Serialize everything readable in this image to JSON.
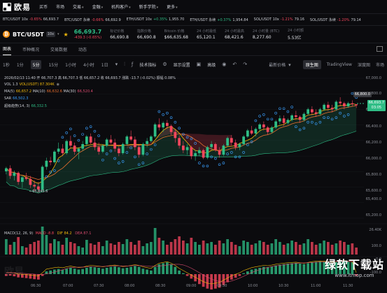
{
  "nav": {
    "logo_text": "欧易",
    "items": [
      "买币",
      "市场",
      "交易",
      "金融",
      "机构客户",
      "新手学院",
      "更多"
    ]
  },
  "ticker": [
    {
      "pair": "BTC/USDT 10x",
      "change": "-0.65%",
      "price": "66,693.7",
      "dir": "down"
    },
    {
      "pair": "BTC/USDT 永续",
      "change": "-0.66%",
      "price": "66,692.9",
      "dir": "down"
    },
    {
      "pair": "ETH/USDT 10x",
      "change": "+0.35%",
      "price": "1,955.70",
      "dir": "up"
    },
    {
      "pair": "ETH/USDT 永续",
      "change": "+0.37%",
      "price": "1,954.84",
      "dir": "up"
    },
    {
      "pair": "SOL/USDT 10x",
      "change": "-1.21%",
      "price": "79.16",
      "dir": "down"
    },
    {
      "pair": "SOL/USDT 永续",
      "change": "-1.20%",
      "price": "79.14",
      "dir": "down"
    }
  ],
  "info": {
    "coin_icon": "₿",
    "pair": "BTC/USDT",
    "leverage": "10x",
    "price": "66,693.7",
    "change": "-439.3 (-0.65%)",
    "stats": [
      {
        "label": "标记价格",
        "value": "66,690.8"
      },
      {
        "label": "指数价格",
        "value": "66,690.8"
      },
      {
        "label": "Bitcoin 价格",
        "value": "$66,635.68"
      },
      {
        "label": "24 小时最低",
        "value": "65,120.1"
      },
      {
        "label": "24 小时最高",
        "value": "68,421.6"
      },
      {
        "label": "24 小时量 (BTC)",
        "value": "8,277.60"
      },
      {
        "label": "24 小时额",
        "value": "5.53亿"
      }
    ]
  },
  "tabs": [
    "图表",
    "币种概况",
    "交易数据",
    "动态"
  ],
  "toolbar": {
    "timeframes": [
      "1秒",
      "1分",
      "5分",
      "15分",
      "1小时",
      "4小时",
      "1日"
    ],
    "active_timeframe": "5分",
    "indicator_label": "技术指标",
    "display_label": "显示设置",
    "hd_label": "高级",
    "latest_price_label": "最新价格",
    "views": [
      "原生图",
      "TradingView",
      "深度图",
      "市场"
    ],
    "active_view": "原生图"
  },
  "legend": {
    "ohlc": "2026/02/13 11:40  开 66,707.3  高 66,707.3  低 66,657.2  收 66,693.7  涨跌 -13.7 (-0.02%)  振幅 0.08%",
    "vol": {
      "label": "VOL 1.3",
      "value": "VOL(USDT) 87.304K"
    },
    "ma": [
      {
        "label": "MA(5)",
        "value": "66,657.2"
      },
      {
        "label": "MA(10)",
        "value": "66,632.6"
      },
      {
        "label": "MA(30)",
        "value": "66,520.4"
      }
    ],
    "sar": {
      "label": "SAR",
      "value": "66,502.3"
    },
    "supertrend": {
      "label": "超级趋势(14, 3)",
      "value": "66,332.5"
    },
    "macd": {
      "label": "MACD(12, 26, 9)",
      "macd": "MACD -8.8",
      "dif": "DIF 84.2",
      "dea": "DEA 87.1"
    }
  },
  "price_axis": [
    "67,000.0",
    "66,800.0",
    "66,600.0",
    "66,400.0",
    "66,200.0",
    "66,000.0",
    "65,800.0",
    "65,600.0",
    "65,400.0",
    "65,200.0"
  ],
  "vol_axis": [
    "26.40K"
  ],
  "macd_axis": [
    "100.0",
    "0.0",
    "-100.0"
  ],
  "time_axis": [
    "06:30",
    "07:00",
    "07:30",
    "08:00",
    "08:30",
    "09:00",
    "09:30",
    "10:00",
    "10:30",
    "11:00",
    "11:30"
  ],
  "price_tag": {
    "price": "66,693.7",
    "countdown": "03:05"
  },
  "high_marker": "66,800.0",
  "low_marker": "65,845.6",
  "colors": {
    "up": "#2ebd85",
    "down": "#f6465d",
    "ma5": "#f0b90b",
    "ma10": "#e86f2e",
    "sar": "#3aa0ff"
  },
  "watermark": {
    "left": "欧易",
    "cn": "绿软下载站",
    "url": "www.itmop.com"
  },
  "chart_data": {
    "type": "candlestick",
    "ylim": [
      65200,
      67050
    ],
    "candles": [
      [
        65820,
        65880,
        65780,
        65860
      ],
      [
        65860,
        65900,
        65720,
        65760
      ],
      [
        65760,
        65830,
        65700,
        65800
      ],
      [
        65800,
        65820,
        65640,
        65680
      ],
      [
        65680,
        65760,
        65600,
        65740
      ],
      [
        65740,
        65800,
        65700,
        65720
      ],
      [
        65720,
        65760,
        65600,
        65640
      ],
      [
        65640,
        65700,
        65560,
        65620
      ],
      [
        65620,
        65680,
        65540,
        65580
      ],
      [
        65580,
        65900,
        65560,
        65880
      ],
      [
        65880,
        66000,
        65840,
        65960
      ],
      [
        65960,
        66010,
        65900,
        65940
      ],
      [
        65940,
        66100,
        65920,
        66080
      ],
      [
        66080,
        66200,
        66050,
        66120
      ],
      [
        66120,
        66180,
        66020,
        66060
      ],
      [
        66060,
        66240,
        66040,
        66220
      ],
      [
        66220,
        66290,
        66120,
        66160
      ],
      [
        66160,
        66200,
        66040,
        66080
      ],
      [
        66080,
        66140,
        65980,
        66120
      ],
      [
        66120,
        66220,
        66090,
        66180
      ],
      [
        66180,
        66300,
        66150,
        66280
      ],
      [
        66280,
        66320,
        66180,
        66200
      ],
      [
        66200,
        66260,
        66100,
        66140
      ],
      [
        66140,
        66200,
        66040,
        66080
      ],
      [
        66080,
        66180,
        66060,
        66160
      ],
      [
        66160,
        66260,
        66140,
        66240
      ],
      [
        66240,
        66300,
        66180,
        66200
      ],
      [
        66200,
        66250,
        66080,
        66120
      ],
      [
        66120,
        66160,
        66020,
        66060
      ],
      [
        66060,
        66200,
        66040,
        66180
      ],
      [
        66180,
        66300,
        66160,
        66280
      ],
      [
        66280,
        66360,
        66220,
        66240
      ],
      [
        66240,
        66280,
        66100,
        66140
      ],
      [
        66140,
        66180,
        66000,
        66040
      ],
      [
        66040,
        66200,
        66020,
        66180
      ],
      [
        66180,
        66260,
        66140,
        66220
      ],
      [
        66220,
        66300,
        66200,
        66280
      ],
      [
        66280,
        66460,
        66260,
        66440
      ],
      [
        66440,
        66520,
        66360,
        66400
      ],
      [
        66400,
        66480,
        66340,
        66460
      ],
      [
        66460,
        66500,
        66380,
        66420
      ],
      [
        66420,
        66440,
        66300,
        66340
      ],
      [
        66340,
        66380,
        66200,
        66260
      ],
      [
        66260,
        66300,
        66120,
        66160
      ],
      [
        66160,
        66220,
        66060,
        66100
      ],
      [
        66100,
        66180,
        66040,
        66140
      ],
      [
        66140,
        66160,
        65980,
        66020
      ],
      [
        66020,
        66100,
        65960,
        66060
      ],
      [
        66060,
        66140,
        66020,
        66100
      ],
      [
        66100,
        66120,
        65980,
        66000
      ],
      [
        66000,
        66160,
        65980,
        66140
      ],
      [
        66140,
        66220,
        66100,
        66180
      ],
      [
        66180,
        66200,
        66080,
        66100
      ],
      [
        66100,
        66140,
        66000,
        66040
      ],
      [
        66040,
        66180,
        66020,
        66160
      ],
      [
        66160,
        66280,
        66140,
        66260
      ],
      [
        66260,
        66300,
        66160,
        66200
      ],
      [
        66200,
        66240,
        66100,
        66140
      ],
      [
        66140,
        66200,
        66100,
        66180
      ],
      [
        66180,
        66300,
        66160,
        66280
      ],
      [
        66280,
        66380,
        66260,
        66360
      ],
      [
        66360,
        66420,
        66300,
        66320
      ],
      [
        66320,
        66400,
        66280,
        66380
      ],
      [
        66380,
        66460,
        66340,
        66440
      ],
      [
        66440,
        66480,
        66360,
        66400
      ],
      [
        66400,
        66420,
        66300,
        66340
      ],
      [
        66340,
        66420,
        66320,
        66400
      ],
      [
        66400,
        66500,
        66380,
        66480
      ],
      [
        66480,
        66560,
        66440,
        66520
      ],
      [
        66520,
        66560,
        66420,
        66460
      ],
      [
        66460,
        66520,
        66440,
        66500
      ],
      [
        66500,
        66580,
        66480,
        66560
      ],
      [
        66560,
        66620,
        66500,
        66540
      ],
      [
        66540,
        66560,
        66460,
        66500
      ],
      [
        66500,
        66600,
        66480,
        66580
      ],
      [
        66580,
        66660,
        66560,
        66640
      ],
      [
        66640,
        66680,
        66560,
        66600
      ],
      [
        66600,
        66640,
        66540,
        66580
      ],
      [
        66580,
        66660,
        66560,
        66640
      ],
      [
        66640,
        66720,
        66620,
        66700
      ],
      [
        66700,
        66740,
        66620,
        66660
      ],
      [
        66660,
        66700,
        66600,
        66640
      ],
      [
        66640,
        66760,
        66620,
        66740
      ],
      [
        66740,
        66800,
        66680,
        66720
      ],
      [
        66720,
        66740,
        66640,
        66680
      ],
      [
        66680,
        66740,
        66660,
        66720
      ],
      [
        66720,
        66760,
        66680,
        66707
      ],
      [
        66707,
        66707,
        66657,
        66694
      ]
    ],
    "volumes": [
      22,
      14,
      18,
      25,
      12,
      10,
      15,
      18,
      20,
      40,
      28,
      16,
      22,
      19,
      14,
      24,
      18,
      16,
      12,
      10,
      21,
      16,
      14,
      18,
      12,
      20,
      16,
      14,
      18,
      15,
      22,
      18,
      14,
      20,
      12,
      16,
      18,
      38,
      24,
      20,
      14,
      18,
      22,
      26,
      20,
      16,
      24,
      18,
      14,
      20,
      16,
      18,
      14,
      20,
      16,
      22,
      18,
      14,
      12,
      20,
      18,
      14,
      16,
      20,
      18,
      14,
      16,
      22,
      18,
      14,
      16,
      20,
      18,
      14,
      16,
      22,
      18,
      14,
      16,
      20,
      18,
      14,
      16,
      20,
      18,
      14,
      16,
      10
    ],
    "macd": [
      -10,
      -8,
      -12,
      -18,
      -20,
      -22,
      -25,
      -28,
      -30,
      -10,
      15,
      20,
      25,
      28,
      24,
      30,
      35,
      30,
      25,
      28,
      35,
      40,
      38,
      35,
      30,
      35,
      40,
      42,
      38,
      32,
      35,
      40,
      45,
      40,
      30,
      25,
      20,
      40,
      55,
      60,
      65,
      55,
      40,
      20,
      5,
      -10,
      -25,
      -40,
      -55,
      -70,
      -80,
      -85,
      -80,
      -75,
      -60,
      -45,
      -30,
      -20,
      -10,
      5,
      15,
      25,
      30,
      35,
      40,
      38,
      42,
      48,
      52,
      55,
      58,
      60,
      62,
      58,
      55,
      60,
      65,
      68,
      70,
      68,
      65,
      62,
      66,
      70,
      72,
      68,
      65,
      -9
    ]
  }
}
